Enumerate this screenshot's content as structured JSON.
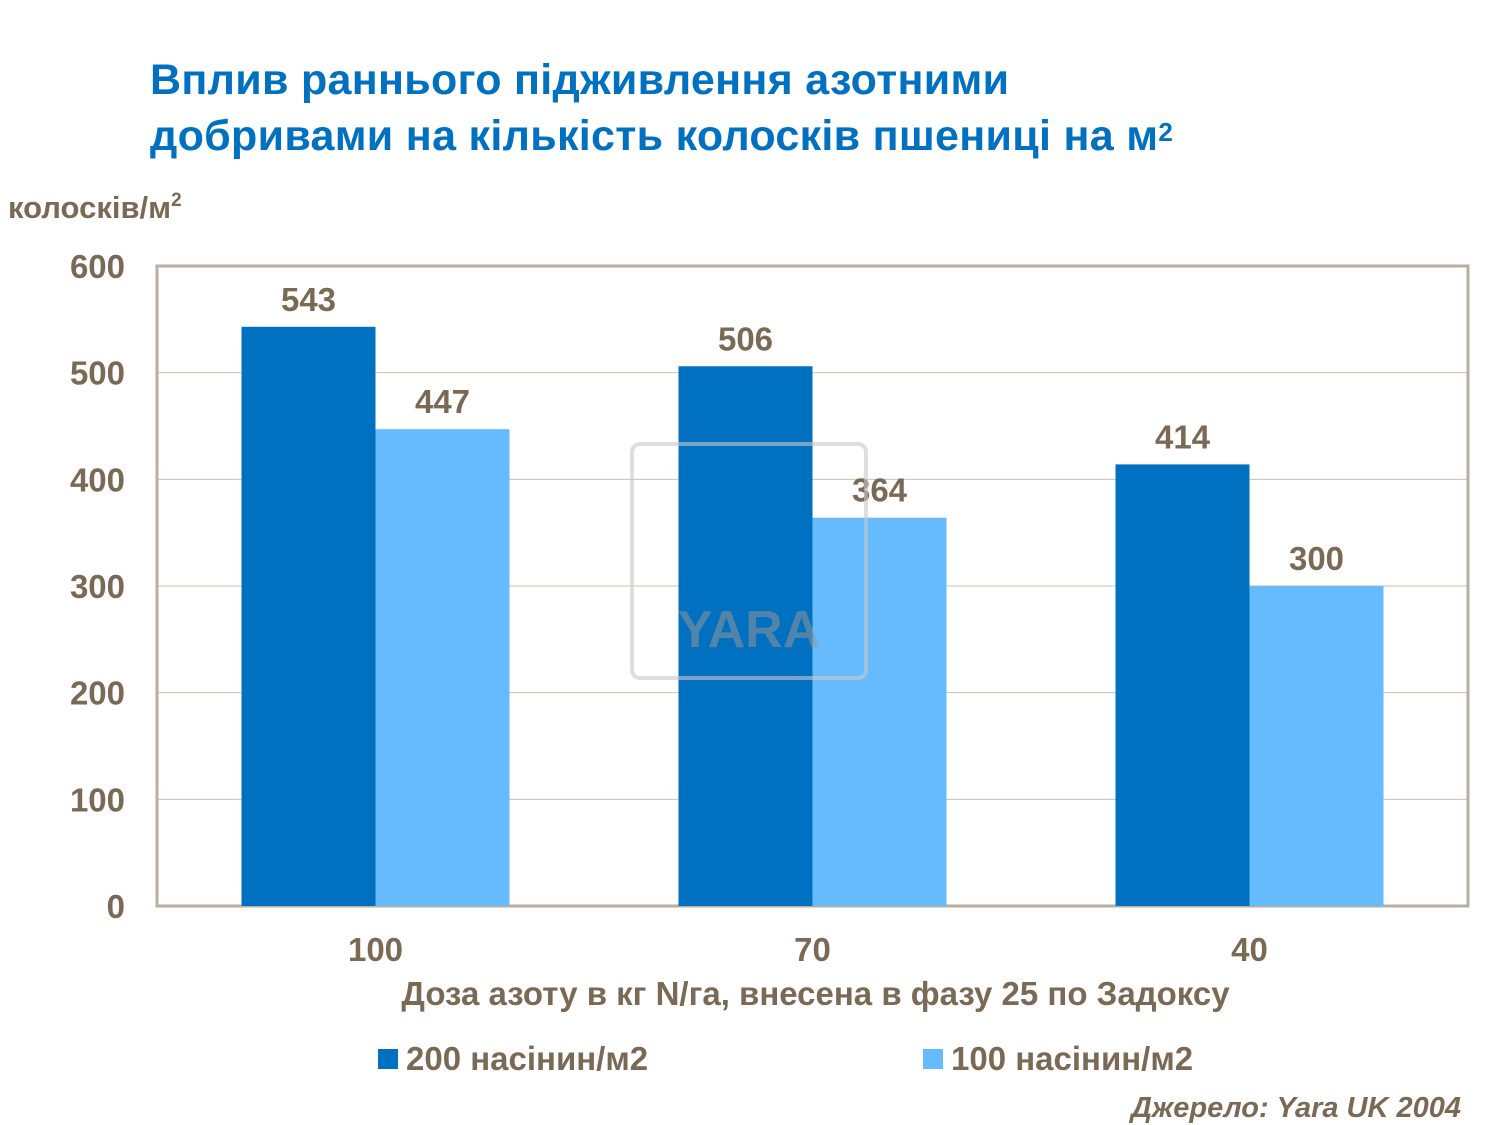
{
  "title_line1": "Вплив раннього підживлення азотними",
  "title_line2": "добривами на кількість колосків пшениці на м",
  "title_sup": "2",
  "watermark_logo": "YARA",
  "source": "Джерело: Yara UK 2004",
  "colors": {
    "series1": "#0070c0",
    "series2": "#66bbff",
    "text": "#7a6a55",
    "title": "#0070c0"
  },
  "chart_data": {
    "type": "bar",
    "title": "Вплив раннього підживлення азотними добривами на кількість колосків пшениці на м2",
    "ylabel": "колосків/м",
    "ylabel_sup": "2",
    "xlabel": "Доза азоту в кг N/га, внесена в фазу 25 по Задоксу",
    "categories": [
      "100",
      "70",
      "40"
    ],
    "series": [
      {
        "name": "200 насінин/м2",
        "values": [
          543,
          506,
          414
        ],
        "color": "#0070c0"
      },
      {
        "name": "100 насінин/м2",
        "values": [
          447,
          364,
          300
        ],
        "color": "#66bbff"
      }
    ],
    "ylim": [
      0,
      600
    ],
    "yticks": [
      "0",
      "100",
      "200",
      "300",
      "400",
      "500",
      "600"
    ],
    "grid": true,
    "legend": "bottom",
    "data_labels": true
  }
}
